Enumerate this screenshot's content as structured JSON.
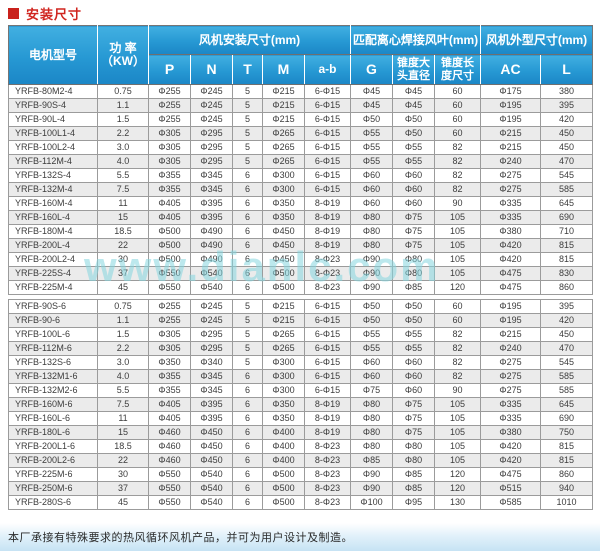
{
  "page": {
    "title": "安装尺寸",
    "watermark": "www.dianlc.com",
    "footer_note": "本厂承接有特殊要求的热风循环风机产品，并可为用户设计及制造。"
  },
  "colors": {
    "title_red": "#d0251f",
    "header_blue_top": "#41afe1",
    "header_blue_bottom": "#1b86c6",
    "row_alt_gray": "#ebebeb",
    "watermark_cyan": "#86d7e0",
    "footer_band_blue": "#c6e3f4"
  },
  "table": {
    "groups": {
      "install": "风机安装尺寸(mm)",
      "blade": "匹配离心焊接风叶(mm)",
      "outline": "风机外型尺寸(mm)"
    },
    "headers": {
      "model": "电机型号",
      "power": "功 率\n（KW）",
      "p": "P",
      "n": "N",
      "t": "T",
      "m": "M",
      "ab": "a-b",
      "g": "G",
      "cone_dia": "锥度大\n头直径",
      "cone_len": "锥度长\n度尺寸",
      "ac": "AC",
      "l": "L"
    },
    "sections": [
      {
        "rows": [
          [
            "YRFB-80M2-4",
            "0.75",
            "Φ255",
            "Φ245",
            "5",
            "Φ215",
            "6-Φ15",
            "Φ45",
            "Φ45",
            "60",
            "Φ175",
            "380"
          ],
          [
            "YRFB-90S-4",
            "1.1",
            "Φ255",
            "Φ245",
            "5",
            "Φ215",
            "6-Φ15",
            "Φ45",
            "Φ45",
            "60",
            "Φ195",
            "395"
          ],
          [
            "YRFB-90L-4",
            "1.5",
            "Φ255",
            "Φ245",
            "5",
            "Φ215",
            "6-Φ15",
            "Φ50",
            "Φ50",
            "60",
            "Φ195",
            "420"
          ],
          [
            "YRFB-100L1-4",
            "2.2",
            "Φ305",
            "Φ295",
            "5",
            "Φ265",
            "6-Φ15",
            "Φ55",
            "Φ50",
            "60",
            "Φ215",
            "450"
          ],
          [
            "YRFB-100L2-4",
            "3.0",
            "Φ305",
            "Φ295",
            "5",
            "Φ265",
            "6-Φ15",
            "Φ55",
            "Φ55",
            "82",
            "Φ215",
            "450"
          ],
          [
            "YRFB-112M-4",
            "4.0",
            "Φ305",
            "Φ295",
            "5",
            "Φ265",
            "6-Φ15",
            "Φ55",
            "Φ55",
            "82",
            "Φ240",
            "470"
          ],
          [
            "YRFB-132S-4",
            "5.5",
            "Φ355",
            "Φ345",
            "6",
            "Φ300",
            "6-Φ15",
            "Φ60",
            "Φ60",
            "82",
            "Φ275",
            "545"
          ],
          [
            "YRFB-132M-4",
            "7.5",
            "Φ355",
            "Φ345",
            "6",
            "Φ300",
            "6-Φ15",
            "Φ60",
            "Φ60",
            "82",
            "Φ275",
            "585"
          ],
          [
            "YRFB-160M-4",
            "11",
            "Φ405",
            "Φ395",
            "6",
            "Φ350",
            "8-Φ19",
            "Φ60",
            "Φ60",
            "90",
            "Φ335",
            "645"
          ],
          [
            "YRFB-160L-4",
            "15",
            "Φ405",
            "Φ395",
            "6",
            "Φ350",
            "8-Φ19",
            "Φ80",
            "Φ75",
            "105",
            "Φ335",
            "690"
          ],
          [
            "YRFB-180M-4",
            "18.5",
            "Φ500",
            "Φ490",
            "6",
            "Φ450",
            "8-Φ19",
            "Φ80",
            "Φ75",
            "105",
            "Φ380",
            "710"
          ],
          [
            "YRFB-200L-4",
            "22",
            "Φ500",
            "Φ490",
            "6",
            "Φ450",
            "8-Φ19",
            "Φ80",
            "Φ75",
            "105",
            "Φ420",
            "815"
          ],
          [
            "YRFB-200L2-4",
            "30",
            "Φ500",
            "Φ490",
            "6",
            "Φ450",
            "8-Φ23",
            "Φ90",
            "Φ80",
            "105",
            "Φ420",
            "815"
          ],
          [
            "YRFB-225S-4",
            "37",
            "Φ550",
            "Φ540",
            "6",
            "Φ500",
            "8-Φ23",
            "Φ90",
            "Φ80",
            "105",
            "Φ475",
            "830"
          ],
          [
            "YRFB-225M-4",
            "45",
            "Φ550",
            "Φ540",
            "6",
            "Φ500",
            "8-Φ23",
            "Φ90",
            "Φ85",
            "120",
            "Φ475",
            "860"
          ]
        ]
      },
      {
        "rows": [
          [
            "YRFB-90S-6",
            "0.75",
            "Φ255",
            "Φ245",
            "5",
            "Φ215",
            "6-Φ15",
            "Φ50",
            "Φ50",
            "60",
            "Φ195",
            "395"
          ],
          [
            "YRFB-90-6",
            "1.1",
            "Φ255",
            "Φ245",
            "5",
            "Φ215",
            "6-Φ15",
            "Φ50",
            "Φ50",
            "60",
            "Φ195",
            "420"
          ],
          [
            "YRFB-100L-6",
            "1.5",
            "Φ305",
            "Φ295",
            "5",
            "Φ265",
            "6-Φ15",
            "Φ55",
            "Φ55",
            "82",
            "Φ215",
            "450"
          ],
          [
            "YRFB-112M-6",
            "2.2",
            "Φ305",
            "Φ295",
            "5",
            "Φ265",
            "6-Φ15",
            "Φ55",
            "Φ55",
            "82",
            "Φ240",
            "470"
          ],
          [
            "YRFB-132S-6",
            "3.0",
            "Φ350",
            "Φ340",
            "5",
            "Φ300",
            "6-Φ15",
            "Φ60",
            "Φ60",
            "82",
            "Φ275",
            "545"
          ],
          [
            "YRFB-132M1-6",
            "4.0",
            "Φ355",
            "Φ345",
            "6",
            "Φ300",
            "6-Φ15",
            "Φ60",
            "Φ60",
            "82",
            "Φ275",
            "585"
          ],
          [
            "YRFB-132M2-6",
            "5.5",
            "Φ355",
            "Φ345",
            "6",
            "Φ300",
            "6-Φ15",
            "Φ75",
            "Φ60",
            "90",
            "Φ275",
            "585"
          ],
          [
            "YRFB-160M-6",
            "7.5",
            "Φ405",
            "Φ395",
            "6",
            "Φ350",
            "8-Φ19",
            "Φ80",
            "Φ75",
            "105",
            "Φ335",
            "645"
          ],
          [
            "YRFB-160L-6",
            "11",
            "Φ405",
            "Φ395",
            "6",
            "Φ350",
            "8-Φ19",
            "Φ80",
            "Φ75",
            "105",
            "Φ335",
            "690"
          ],
          [
            "YRFB-180L-6",
            "15",
            "Φ460",
            "Φ450",
            "6",
            "Φ400",
            "8-Φ19",
            "Φ80",
            "Φ75",
            "105",
            "Φ380",
            "750"
          ],
          [
            "YRFB-200L1-6",
            "18.5",
            "Φ460",
            "Φ450",
            "6",
            "Φ400",
            "8-Φ23",
            "Φ80",
            "Φ80",
            "105",
            "Φ420",
            "815"
          ],
          [
            "YRFB-200L2-6",
            "22",
            "Φ460",
            "Φ450",
            "6",
            "Φ400",
            "8-Φ23",
            "Φ85",
            "Φ80",
            "105",
            "Φ420",
            "815"
          ],
          [
            "YRFB-225M-6",
            "30",
            "Φ550",
            "Φ540",
            "6",
            "Φ500",
            "8-Φ23",
            "Φ90",
            "Φ85",
            "120",
            "Φ475",
            "860"
          ],
          [
            "YRFB-250M-6",
            "37",
            "Φ550",
            "Φ540",
            "6",
            "Φ500",
            "8-Φ23",
            "Φ90",
            "Φ85",
            "120",
            "Φ515",
            "940"
          ],
          [
            "YRFB-280S-6",
            "45",
            "Φ550",
            "Φ540",
            "6",
            "Φ500",
            "8-Φ23",
            "Φ100",
            "Φ95",
            "130",
            "Φ585",
            "1010"
          ]
        ]
      }
    ]
  }
}
